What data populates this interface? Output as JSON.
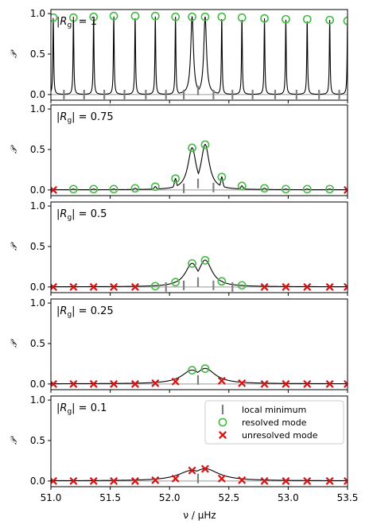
{
  "figure": {
    "xlabel": "ν / μHz",
    "ylabel": "𝒫",
    "xticks": [
      "51.0",
      "51.5",
      "52.0",
      "52.5",
      "53.0",
      "53.5"
    ],
    "yticks": [
      "0.0",
      "0.5",
      "1.0"
    ],
    "legend": {
      "local_minimum": "local minimum",
      "resolved": "resolved mode",
      "unresolved": "unresolved mode"
    }
  },
  "colors": {
    "curve": "#000000",
    "resolved": "#44bb44",
    "unresolved": "#dd1111",
    "minimum": "#808080"
  },
  "chart_data": [
    {
      "type": "line",
      "label": "|Rg| = 1",
      "label_main": "|R",
      "label_sub": "g",
      "label_rest": "| = 1",
      "xlim": [
        51.0,
        53.5
      ],
      "ylim": [
        -0.07,
        1.05
      ],
      "width_scale": 0.004,
      "resolved_modes": [
        {
          "x": 51.02,
          "y": 0.95
        },
        {
          "x": 51.19,
          "y": 0.95
        },
        {
          "x": 51.36,
          "y": 0.96
        },
        {
          "x": 51.53,
          "y": 0.97
        },
        {
          "x": 51.71,
          "y": 0.97
        },
        {
          "x": 51.88,
          "y": 0.97
        },
        {
          "x": 52.05,
          "y": 0.96
        },
        {
          "x": 52.19,
          "y": 0.96
        },
        {
          "x": 52.3,
          "y": 0.96
        },
        {
          "x": 52.44,
          "y": 0.96
        },
        {
          "x": 52.61,
          "y": 0.95
        },
        {
          "x": 52.8,
          "y": 0.94
        },
        {
          "x": 52.98,
          "y": 0.93
        },
        {
          "x": 53.16,
          "y": 0.93
        },
        {
          "x": 53.35,
          "y": 0.92
        },
        {
          "x": 53.5,
          "y": 0.91
        }
      ],
      "unresolved_modes": [],
      "local_minima": [
        {
          "x": 51.11,
          "y": 0.0
        },
        {
          "x": 51.28,
          "y": 0.0
        },
        {
          "x": 51.45,
          "y": 0.0
        },
        {
          "x": 51.62,
          "y": 0.0
        },
        {
          "x": 51.8,
          "y": 0.0
        },
        {
          "x": 51.97,
          "y": 0.0
        },
        {
          "x": 52.12,
          "y": 0.0
        },
        {
          "x": 52.24,
          "y": 0.05
        },
        {
          "x": 52.37,
          "y": 0.0
        },
        {
          "x": 52.53,
          "y": 0.0
        },
        {
          "x": 52.7,
          "y": 0.0
        },
        {
          "x": 52.89,
          "y": 0.0
        },
        {
          "x": 53.07,
          "y": 0.0
        },
        {
          "x": 53.26,
          "y": 0.0
        },
        {
          "x": 53.43,
          "y": 0.0
        }
      ]
    },
    {
      "type": "line",
      "label": "|Rg| = 0.75",
      "label_main": "|R",
      "label_sub": "g",
      "label_rest": "| = 0.75",
      "xlim": [
        51.0,
        53.5
      ],
      "ylim": [
        -0.07,
        1.05
      ],
      "width_scale": 0.012,
      "resolved_modes": [
        {
          "x": 51.19,
          "y": 0.01
        },
        {
          "x": 51.36,
          "y": 0.01
        },
        {
          "x": 51.53,
          "y": 0.01
        },
        {
          "x": 51.71,
          "y": 0.02
        },
        {
          "x": 51.88,
          "y": 0.04
        },
        {
          "x": 52.05,
          "y": 0.14
        },
        {
          "x": 52.19,
          "y": 0.52
        },
        {
          "x": 52.3,
          "y": 0.56
        },
        {
          "x": 52.44,
          "y": 0.16
        },
        {
          "x": 52.61,
          "y": 0.05
        },
        {
          "x": 52.8,
          "y": 0.02
        },
        {
          "x": 52.98,
          "y": 0.01
        },
        {
          "x": 53.16,
          "y": 0.01
        },
        {
          "x": 53.35,
          "y": 0.01
        }
      ],
      "unresolved_modes": [
        {
          "x": 51.02,
          "y": 0.0
        },
        {
          "x": 53.5,
          "y": 0.0
        }
      ],
      "local_minima": [
        {
          "x": 52.12,
          "y": 0.02
        },
        {
          "x": 52.24,
          "y": 0.08
        },
        {
          "x": 52.37,
          "y": 0.03
        }
      ]
    },
    {
      "type": "line",
      "label": "|Rg| = 0.5",
      "label_main": "|R",
      "label_sub": "g",
      "label_rest": "| = 0.5",
      "xlim": [
        51.0,
        53.5
      ],
      "ylim": [
        -0.07,
        1.05
      ],
      "width_scale": 0.02,
      "resolved_modes": [
        {
          "x": 51.88,
          "y": 0.01
        },
        {
          "x": 52.05,
          "y": 0.06
        },
        {
          "x": 52.19,
          "y": 0.29
        },
        {
          "x": 52.3,
          "y": 0.33
        },
        {
          "x": 52.44,
          "y": 0.07
        },
        {
          "x": 52.61,
          "y": 0.02
        }
      ],
      "unresolved_modes": [
        {
          "x": 51.02,
          "y": 0.0
        },
        {
          "x": 51.19,
          "y": 0.0
        },
        {
          "x": 51.36,
          "y": 0.0
        },
        {
          "x": 51.53,
          "y": 0.0
        },
        {
          "x": 51.71,
          "y": 0.0
        },
        {
          "x": 52.8,
          "y": 0.0
        },
        {
          "x": 52.98,
          "y": 0.0
        },
        {
          "x": 53.16,
          "y": 0.0
        },
        {
          "x": 53.35,
          "y": 0.0
        },
        {
          "x": 53.5,
          "y": 0.0
        }
      ],
      "local_minima": [
        {
          "x": 51.97,
          "y": 0.0
        },
        {
          "x": 52.12,
          "y": 0.02
        },
        {
          "x": 52.24,
          "y": 0.06
        },
        {
          "x": 52.37,
          "y": 0.02
        },
        {
          "x": 52.53,
          "y": 0.0
        }
      ]
    },
    {
      "type": "line",
      "label": "|Rg| = 0.25",
      "label_main": "|R",
      "label_sub": "g",
      "label_rest": "| = 0.25",
      "xlim": [
        51.0,
        53.5
      ],
      "ylim": [
        -0.07,
        1.05
      ],
      "width_scale": 0.03,
      "resolved_modes": [
        {
          "x": 52.19,
          "y": 0.17
        },
        {
          "x": 52.3,
          "y": 0.19
        }
      ],
      "unresolved_modes": [
        {
          "x": 51.02,
          "y": 0.0
        },
        {
          "x": 51.19,
          "y": 0.0
        },
        {
          "x": 51.36,
          "y": 0.0
        },
        {
          "x": 51.53,
          "y": 0.0
        },
        {
          "x": 51.71,
          "y": 0.0
        },
        {
          "x": 51.88,
          "y": 0.01
        },
        {
          "x": 52.05,
          "y": 0.03
        },
        {
          "x": 52.44,
          "y": 0.04
        },
        {
          "x": 52.61,
          "y": 0.01
        },
        {
          "x": 52.8,
          "y": 0.0
        },
        {
          "x": 52.98,
          "y": 0.0
        },
        {
          "x": 53.16,
          "y": 0.0
        },
        {
          "x": 53.35,
          "y": 0.0
        },
        {
          "x": 53.5,
          "y": 0.0
        }
      ],
      "local_minima": [
        {
          "x": 52.24,
          "y": 0.05
        }
      ]
    },
    {
      "type": "line",
      "label": "|Rg| = 0.1",
      "label_main": "|R",
      "label_sub": "g",
      "label_rest": "| = 0.1",
      "xlim": [
        51.0,
        53.5
      ],
      "ylim": [
        -0.07,
        1.05
      ],
      "width_scale": 0.04,
      "resolved_modes": [],
      "unresolved_modes": [
        {
          "x": 51.02,
          "y": 0.0
        },
        {
          "x": 51.19,
          "y": 0.0
        },
        {
          "x": 51.36,
          "y": 0.0
        },
        {
          "x": 51.53,
          "y": 0.0
        },
        {
          "x": 51.71,
          "y": 0.0
        },
        {
          "x": 51.88,
          "y": 0.01
        },
        {
          "x": 52.05,
          "y": 0.03
        },
        {
          "x": 52.19,
          "y": 0.13
        },
        {
          "x": 52.3,
          "y": 0.15
        },
        {
          "x": 52.44,
          "y": 0.03
        },
        {
          "x": 52.61,
          "y": 0.01
        },
        {
          "x": 52.8,
          "y": 0.0
        },
        {
          "x": 52.98,
          "y": 0.0
        },
        {
          "x": 53.16,
          "y": 0.0
        },
        {
          "x": 53.35,
          "y": 0.0
        },
        {
          "x": 53.5,
          "y": 0.0
        }
      ],
      "local_minima": [
        {
          "x": 52.24,
          "y": 0.03
        }
      ]
    }
  ]
}
